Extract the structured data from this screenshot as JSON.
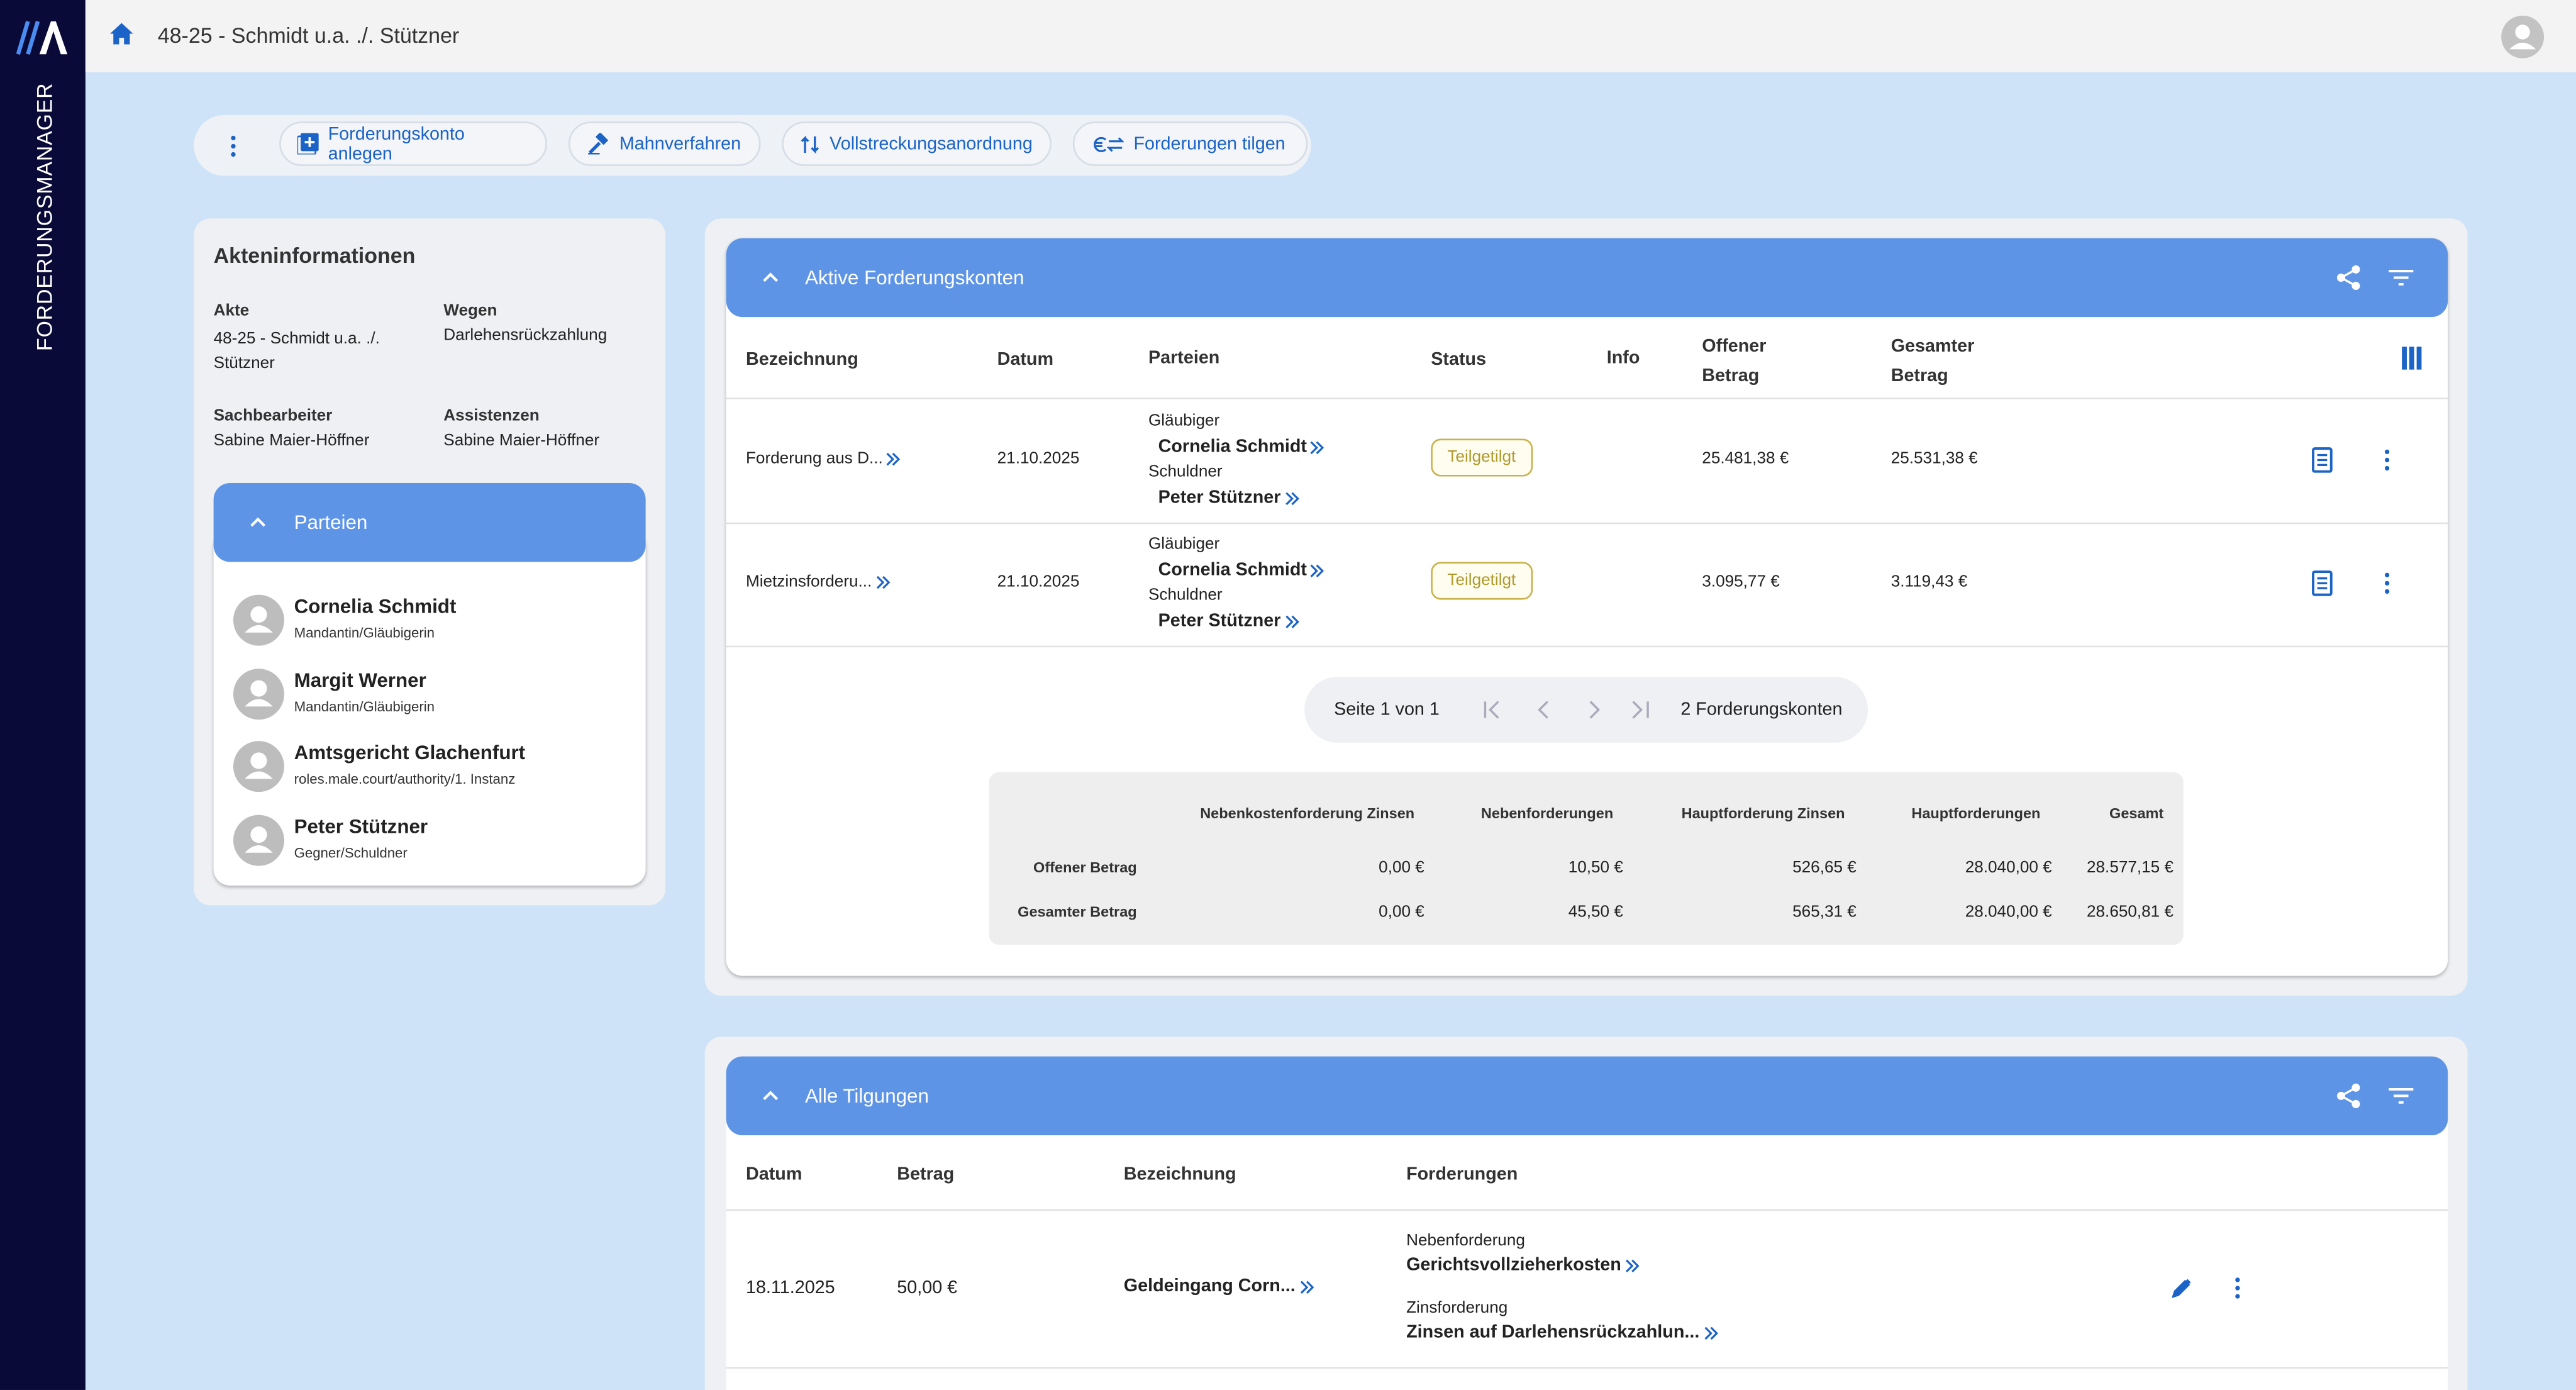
{
  "sidebar": {
    "app_name": "FORDERUNGSMANAGER"
  },
  "header": {
    "breadcrumb": "48-25 - Schmidt u.a. ./. Stützner"
  },
  "toolbar": {
    "actions": [
      "Forderungskonto anlegen",
      "Mahnverfahren",
      "Vollstreckungsanordnung",
      "Forderungen tilgen"
    ]
  },
  "akteninformationen": {
    "title": "Akteninformationen",
    "fields": [
      {
        "label": "Akte",
        "value": "48-25 - Schmidt u.a. ./. Stützner"
      },
      {
        "label": "Wegen",
        "value": "Darlehensrückzahlung"
      },
      {
        "label": "Sachbearbeiter",
        "value": "Sabine Maier-Höffner"
      },
      {
        "label": "Assistenzen",
        "value": "Sabine Maier-Höffner"
      }
    ],
    "parteien": {
      "title": "Parteien",
      "items": [
        {
          "name": "Cornelia Schmidt",
          "role": "Mandantin/Gläubigerin"
        },
        {
          "name": "Margit Werner",
          "role": "Mandantin/Gläubigerin"
        },
        {
          "name": "Amtsgericht Glachenfurt",
          "role": "roles.male.court/authority/1. Instanz"
        },
        {
          "name": "Peter Stützner",
          "role": "Gegner/Schuldner"
        }
      ]
    }
  },
  "forderungskonten": {
    "title": "Aktive Forderungskonten",
    "columns": [
      "Bezeichnung",
      "Datum",
      "Parteien",
      "Status",
      "Info",
      "Offener Betrag",
      "Gesamter Betrag"
    ],
    "rows": [
      {
        "bezeichnung": "Forderung aus D...",
        "datum": "21.10.2025",
        "glaeubiger_label": "Gläubiger",
        "glaeubiger": "Cornelia Schmidt",
        "schuldner_label": "Schuldner",
        "schuldner": "Peter Stützner",
        "status": "Teilgetilgt",
        "offen": "25.481,38 €",
        "gesamt": "25.531,38 €"
      },
      {
        "bezeichnung": "Mietzinsforderu...",
        "datum": "21.10.2025",
        "glaeubiger_label": "Gläubiger",
        "glaeubiger": "Cornelia Schmidt",
        "schuldner_label": "Schuldner",
        "schuldner": "Peter Stützner",
        "status": "Teilgetilgt",
        "offen": "3.095,77 €",
        "gesamt": "3.119,43 €"
      }
    ],
    "pagination": {
      "page": "Seite 1 von 1",
      "count": "2 Forderungskonten"
    },
    "summary": {
      "columns": [
        "Nebenkostenforderung Zinsen",
        "Nebenforderungen",
        "Hauptforderung Zinsen",
        "Hauptforderungen",
        "Gesamt"
      ],
      "rows": [
        {
          "label": "Offener Betrag",
          "values": [
            "0,00 €",
            "10,50 €",
            "526,65 €",
            "28.040,00 €",
            "28.577,15 €"
          ]
        },
        {
          "label": "Gesamter Betrag",
          "values": [
            "0,00 €",
            "45,50 €",
            "565,31 €",
            "28.040,00 €",
            "28.650,81 €"
          ]
        }
      ]
    }
  },
  "tilgungen": {
    "title": "Alle Tilgungen",
    "columns": [
      "Datum",
      "Betrag",
      "Bezeichnung",
      "Forderungen"
    ],
    "rows": [
      {
        "datum": "18.11.2025",
        "betrag": "50,00 €",
        "bezeichnung": "Geldeingang Corn...",
        "forderungen": [
          {
            "type": "Nebenforderung",
            "name": "Gerichtsvollzieherkosten"
          },
          {
            "type": "Zinsforderung",
            "name": "Zinsen auf Darlehensrückzahlun..."
          }
        ]
      }
    ]
  }
}
